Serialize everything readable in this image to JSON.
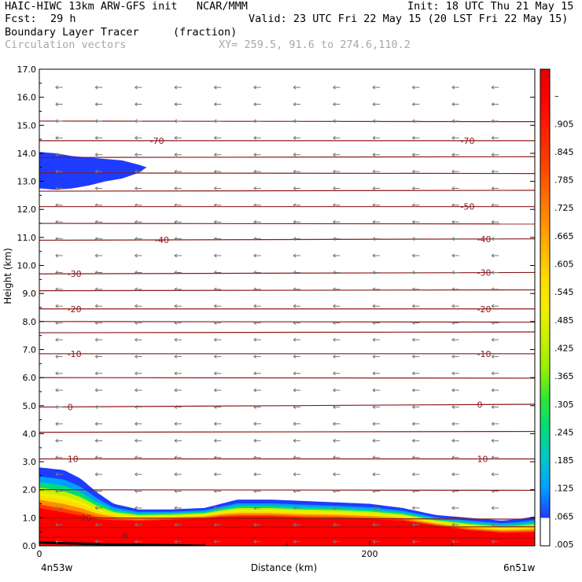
{
  "header": {
    "title_left": "HAIC-HIWC 13km ARW-GFS init   NCAR/MMM",
    "init_text": "Init: 18 UTC Thu 21 May 15",
    "fcst_label": "Fcst:",
    "fcst_value": "29 h",
    "valid_text": "Valid: 23 UTC Fri 22 May 15 (20 LST Fri 22 May 15)",
    "field_name": "Boundary Layer Tracer",
    "field_units": "(fraction)",
    "vector_label": "Circulation vectors",
    "xy_text": "XY= 259.5, 91.6 to 274.6,110.2"
  },
  "chart_data": {
    "type": "heatmap",
    "title": "Boundary Layer Tracer (fraction)",
    "xlabel": "Distance (km)",
    "ylabel": "Height (km)",
    "xlim": [
      0,
      300
    ],
    "ylim": [
      0.0,
      17.0
    ],
    "x_ticks": [
      {
        "value": 0,
        "label": "0"
      },
      {
        "value": 200,
        "label": "200"
      }
    ],
    "x_end_labels": {
      "left": "4n53w",
      "right": "6n51w"
    },
    "y_ticks": [
      "0.0",
      "1.0",
      "2.0",
      "3.0",
      "4.0",
      "5.0",
      "6.0",
      "7.0",
      "8.0",
      "9.0",
      "10.0",
      "11.0",
      "12.0",
      "13.0",
      "14.0",
      "15.0",
      "16.0",
      "17.0"
    ],
    "colorbar": {
      "labels": [
        ".005",
        ".065",
        ".125",
        ".185",
        ".245",
        ".305",
        ".365",
        ".425",
        ".485",
        ".545",
        ".605",
        ".665",
        ".725",
        ".785",
        ".845",
        ".905",
        "–"
      ],
      "colors": [
        "#ffffff",
        "#1e3cff",
        "#00a0ff",
        "#00c8c8",
        "#00dc78",
        "#32e632",
        "#96f000",
        "#c8f000",
        "#f0f000",
        "#ffdc00",
        "#ffb400",
        "#ff8c00",
        "#ff6400",
        "#ff3c00",
        "#ff1e00",
        "#ff0000",
        "#e60000"
      ]
    },
    "tracer_profile": {
      "x_km": [
        0,
        15,
        25,
        35,
        45,
        60,
        80,
        100,
        110,
        120,
        140,
        160,
        180,
        200,
        220,
        240,
        260,
        280,
        290,
        300
      ],
      "top_km": [
        2.8,
        2.7,
        2.4,
        1.9,
        1.5,
        1.3,
        1.3,
        1.35,
        1.5,
        1.65,
        1.65,
        1.6,
        1.55,
        1.5,
        1.35,
        1.1,
        1.0,
        0.9,
        0.95,
        1.05
      ],
      "core_top_km": [
        1.4,
        1.2,
        1.1,
        1.0,
        1.0,
        1.0,
        1.05,
        1.1,
        1.15,
        1.15,
        1.15,
        1.1,
        1.1,
        1.05,
        1.0,
        0.8,
        0.6,
        0.5,
        0.5,
        0.5
      ]
    },
    "upper_tracer_blob": {
      "x_km": [
        0,
        10,
        20,
        30,
        40,
        50,
        60,
        65
      ],
      "top_km": [
        14.05,
        14.0,
        13.9,
        13.85,
        13.8,
        13.75,
        13.6,
        13.5
      ],
      "bottom_km": [
        12.75,
        12.7,
        12.75,
        12.85,
        13.0,
        13.1,
        13.3,
        13.5
      ]
    },
    "temperature_contours": {
      "units": "C",
      "levels": [
        {
          "value": 20,
          "label": "20",
          "z_left": 1.0,
          "z_right": 0.95,
          "label_x": [
            25
          ]
        },
        {
          "value": 10,
          "label": "10",
          "z_left": 3.1,
          "z_right": 3.1,
          "label_x": [
            17,
            265
          ]
        },
        {
          "value": 0,
          "label": "0",
          "z_left": 4.95,
          "z_right": 5.05,
          "label_x": [
            17,
            265
          ]
        },
        {
          "value": -10,
          "label": "-10",
          "z_left": 6.85,
          "z_right": 6.85,
          "label_x": [
            17,
            265
          ]
        },
        {
          "value": -20,
          "label": "-20",
          "z_left": 8.45,
          "z_right": 8.45,
          "label_x": [
            17,
            265
          ]
        },
        {
          "value": -30,
          "label": "-30",
          "z_left": 9.7,
          "z_right": 9.75,
          "label_x": [
            17,
            265
          ]
        },
        {
          "value": -40,
          "label": "-40",
          "z_left": 10.9,
          "z_right": 10.95,
          "label_x": [
            70,
            265
          ]
        },
        {
          "value": -50,
          "label": "-50",
          "z_left": 12.1,
          "z_right": 12.1,
          "label_x": [
            255
          ]
        },
        {
          "value": -70,
          "label": "-70",
          "z_left": 14.45,
          "z_right": 14.45,
          "label_x": [
            67,
            255
          ]
        }
      ],
      "unlabeled_z": [
        0.3,
        0.65,
        2.0,
        4.05,
        6.0,
        7.6,
        8.0,
        9.1,
        11.5,
        12.65,
        13.3,
        13.85,
        15.15
      ]
    },
    "vectors": {
      "x_spacing_km": 24,
      "z_spacing_km": 0.6,
      "direction": "westward"
    }
  }
}
